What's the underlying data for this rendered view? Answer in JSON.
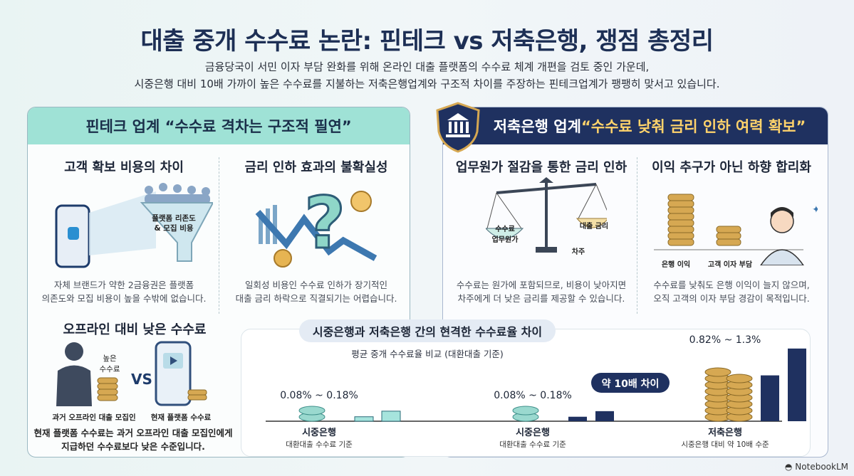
{
  "header": {
    "title": "대출 중개 수수료 논란: 핀테크 vs 저축은행, 쟁점 총정리",
    "subtitle_line1": "금융당국이 서민 이자 부담 완화를 위해 온라인 대출 플랫폼의 수수료 체계 개편을 검토 중인 가운데,",
    "subtitle_line2": "시중은행 대비 10배 가까이 높은 수수료를 지불하는 저축은행업계와 구조적 차이를 주장하는 핀테크업계가 팽팽히 맞서고 있습니다."
  },
  "left_panel": {
    "banner": "핀테크 업계 “수수료 격차는 구조적 필연”",
    "sec1": {
      "title": "고객 확보 비용의 차이",
      "funnel_label_1": "플랫폼 리존도",
      "funnel_label_2": "& 모집 비용",
      "desc_1": "자체 브랜드가 약한 2금융권은 플랫폼",
      "desc_2": "의존도와 모집 비용이 높을 수밖에 없습니다."
    },
    "sec2": {
      "title": "금리 인하 효과의 불확실성",
      "desc_1": "일회성 비용인 수수료 인하가 장기적인",
      "desc_2": "대출 금리 하락으로 직결되기는 어렵습니다."
    },
    "sec3": {
      "title": "오프라인 대비 낮은 수수료",
      "high_fee_1": "높은",
      "high_fee_2": "수수료",
      "vs": "VS",
      "left_caption": "과거 오프라인 대출 모집인",
      "right_caption": "현재 플랫폼 수수료",
      "desc_1": "현재 플랫폼 수수료는 과거 오프라인 대출 모집인에게",
      "desc_2": "지급하던 수수료보다 낮은 수준입니다."
    }
  },
  "right_panel": {
    "banner_prefix": "저축은행 업계 ",
    "banner_highlight": "“수수료 낮춰 금리 인하 여력 확보”",
    "sec1": {
      "title": "업무원가 절감을 통한 금리 인하",
      "scale_left_1": "수수료",
      "scale_left_2": "업무원가",
      "scale_right": "대출 금리",
      "scale_bottom": "차주",
      "desc_1": "수수료는 원가에 포함되므로, 비용이 낮아지면",
      "desc_2": "차주에게 더 낮은 금리를 제공할 수 있습니다."
    },
    "sec2": {
      "title": "이익 추구가 아닌 하향 합리화",
      "coin_label_1": "은행 이익",
      "coin_label_2": "고객 이자 부담",
      "desc_1": "수수료를 낮춰도 은행 이익이 늘지 않으며,",
      "desc_2": "오직 고객의 이자 부담 경감이 목적입니다."
    }
  },
  "chart": {
    "title": "시중은행과 저축은행 간의 현격한 수수료율 차이",
    "subtitle": "평균 중개 수수료율 비교 (대환대출 기준)",
    "callout": "약 10배 차이",
    "groups": [
      {
        "range": "0.08% ~ 0.18%",
        "name": "시중은행",
        "caption": "대환대출 수수료 기준"
      },
      {
        "range": "0.08% ~ 0.18%",
        "name": "시중은행",
        "caption": "대환대출 수수료 기준"
      },
      {
        "range": "0.82% ~ 1.3%",
        "name": "저축은행",
        "caption": "시중은행 대비 약 10배 수준"
      }
    ]
  },
  "chart_data": {
    "type": "bar",
    "categories": [
      "시중은행",
      "시중은행",
      "저축은행"
    ],
    "series": [
      {
        "values": [
          0.08,
          0.08,
          0.82
        ]
      },
      {
        "values": [
          0.18,
          0.18,
          1.3
        ]
      }
    ],
    "title": "시중은행과 저축은행 간의 현격한 수수료율 차이",
    "subtitle": "평균 중개 수수료율 비교 (대환대출 기준)",
    "ylim": [
      0,
      1.4
    ],
    "grid": false
  },
  "colors": {
    "navy": "#1f3160",
    "teal": "#9fe2d6",
    "gold": "#d6a852",
    "bar_teal": "#a6e4dd"
  },
  "footer": {
    "logo": "NotebookLM"
  }
}
